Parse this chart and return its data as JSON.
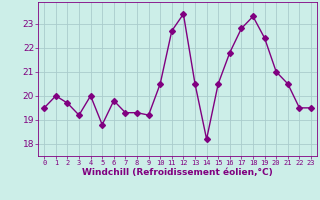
{
  "x": [
    0,
    1,
    2,
    3,
    4,
    5,
    6,
    7,
    8,
    9,
    10,
    11,
    12,
    13,
    14,
    15,
    16,
    17,
    18,
    19,
    20,
    21,
    22,
    23
  ],
  "y": [
    19.5,
    20.0,
    19.7,
    19.2,
    20.0,
    18.8,
    19.8,
    19.3,
    19.3,
    19.2,
    20.5,
    22.7,
    23.4,
    20.5,
    18.2,
    20.5,
    21.8,
    22.8,
    23.3,
    22.4,
    21.0,
    20.5,
    19.5,
    19.5
  ],
  "line_color": "#800080",
  "marker": "D",
  "marker_size": 3,
  "bg_color": "#cceee8",
  "grid_color": "#aacccc",
  "xlabel": "Windchill (Refroidissement éolien,°C)",
  "xlabel_color": "#800080",
  "tick_color": "#800080",
  "ylim": [
    17.5,
    23.9
  ],
  "xlim": [
    -0.5,
    23.5
  ],
  "yticks": [
    18,
    19,
    20,
    21,
    22,
    23
  ],
  "xticks": [
    0,
    1,
    2,
    3,
    4,
    5,
    6,
    7,
    8,
    9,
    10,
    11,
    12,
    13,
    14,
    15,
    16,
    17,
    18,
    19,
    20,
    21,
    22,
    23
  ],
  "line_width": 1.0
}
